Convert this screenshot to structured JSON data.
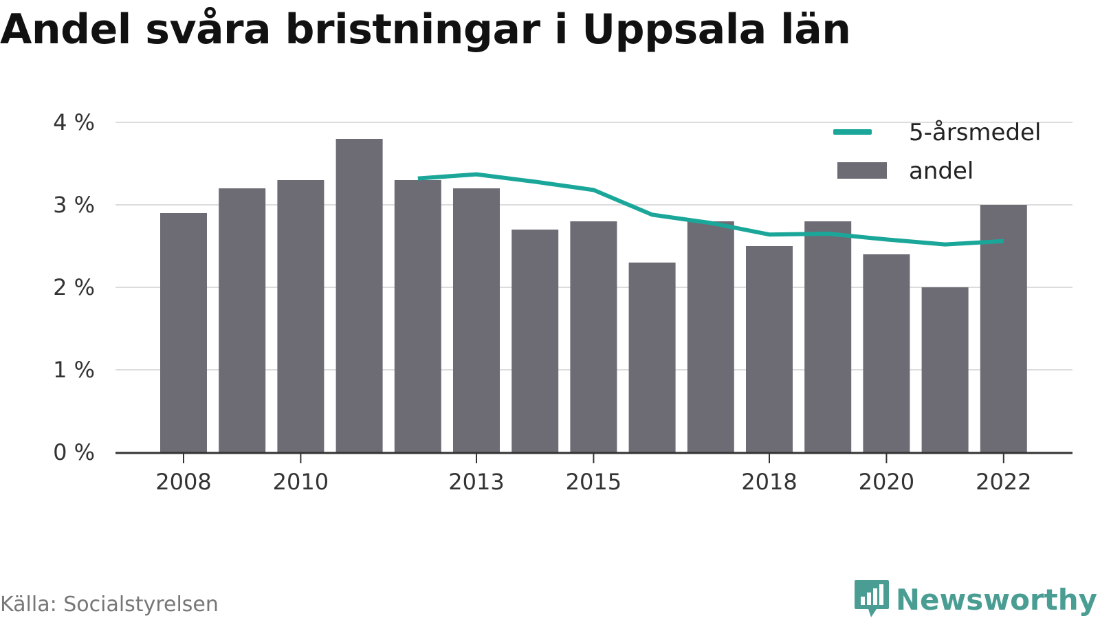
{
  "title": "Andel svåra bristningar i Uppsala län",
  "source": "Källa: Socialstyrelsen",
  "brand": "Newsworthy",
  "colors": {
    "bar": "#6d6c74",
    "line": "#1aa79a",
    "brand": "#4a9d93"
  },
  "legend": {
    "line_label": "5-årsmedel",
    "bar_label": "andel",
    "placement": "top-right"
  },
  "chart_data": {
    "type": "bar",
    "title": "Andel svåra bristningar i Uppsala län",
    "xlabel": "",
    "ylabel": "",
    "ylim": [
      0,
      4
    ],
    "grid": true,
    "y_ticks": [
      {
        "value": 0,
        "label": "0 %"
      },
      {
        "value": 1,
        "label": "1 %"
      },
      {
        "value": 2,
        "label": "2 %"
      },
      {
        "value": 3,
        "label": "3 %"
      },
      {
        "value": 4,
        "label": "4 %"
      }
    ],
    "x_ticks": [
      "2008",
      "2010",
      "2013",
      "2015",
      "2018",
      "2020",
      "2022"
    ],
    "categories": [
      2008,
      2009,
      2010,
      2011,
      2012,
      2013,
      2014,
      2015,
      2016,
      2017,
      2018,
      2019,
      2020,
      2021,
      2022
    ],
    "series": [
      {
        "name": "andel",
        "type": "bar",
        "values": [
          2.9,
          3.2,
          3.3,
          3.8,
          3.3,
          3.2,
          2.7,
          2.8,
          2.3,
          2.8,
          2.5,
          2.8,
          2.4,
          2.0,
          3.0
        ]
      },
      {
        "name": "5-årsmedel",
        "type": "line",
        "values": [
          null,
          null,
          null,
          null,
          3.32,
          3.37,
          3.28,
          3.18,
          2.88,
          2.78,
          2.64,
          2.65,
          2.58,
          2.52,
          2.56
        ]
      }
    ]
  }
}
